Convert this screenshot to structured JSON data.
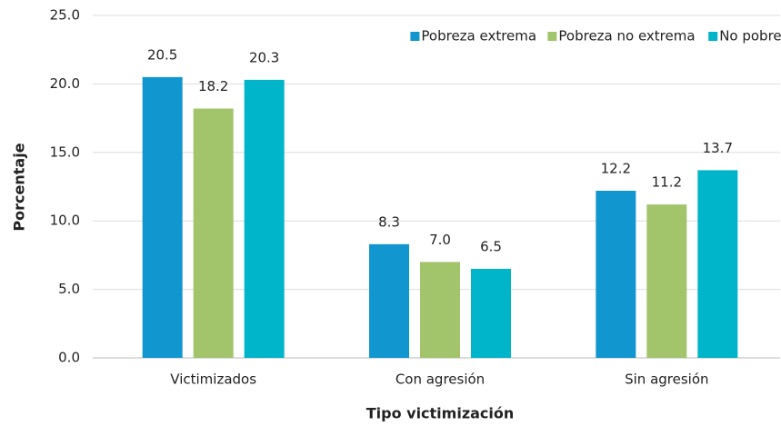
{
  "chart_data": {
    "type": "bar",
    "x_label": "Tipo victimización",
    "y_label": "Porcentaje",
    "categories": [
      "Victimizados",
      "Con agresión",
      "Sin agresión"
    ],
    "series": [
      {
        "name": "Pobreza extrema",
        "color": "#1196d0",
        "values": [
          20.5,
          8.3,
          12.2
        ],
        "value_labels": [
          "20.5",
          "8.3",
          "12.2"
        ]
      },
      {
        "name": "Pobreza no extrema",
        "color": "#a2c46b",
        "values": [
          18.2,
          7.0,
          11.2
        ],
        "value_labels": [
          "18.2",
          "7.0",
          "11.2"
        ]
      },
      {
        "name": "No pobre",
        "color": "#00b5c9",
        "values": [
          20.3,
          6.5,
          13.7
        ],
        "value_labels": [
          "20.3",
          "6.5",
          "13.7"
        ]
      }
    ],
    "ylim": [
      0,
      25
    ],
    "yticks": [
      {
        "value": 0,
        "label": "0.0"
      },
      {
        "value": 5,
        "label": "5.0"
      },
      {
        "value": 10,
        "label": "10.0"
      },
      {
        "value": 15,
        "label": "15.0"
      },
      {
        "value": 20,
        "label": "20.0"
      },
      {
        "value": 25,
        "label": "25.0"
      }
    ],
    "grid": true,
    "legend": "top-right"
  }
}
